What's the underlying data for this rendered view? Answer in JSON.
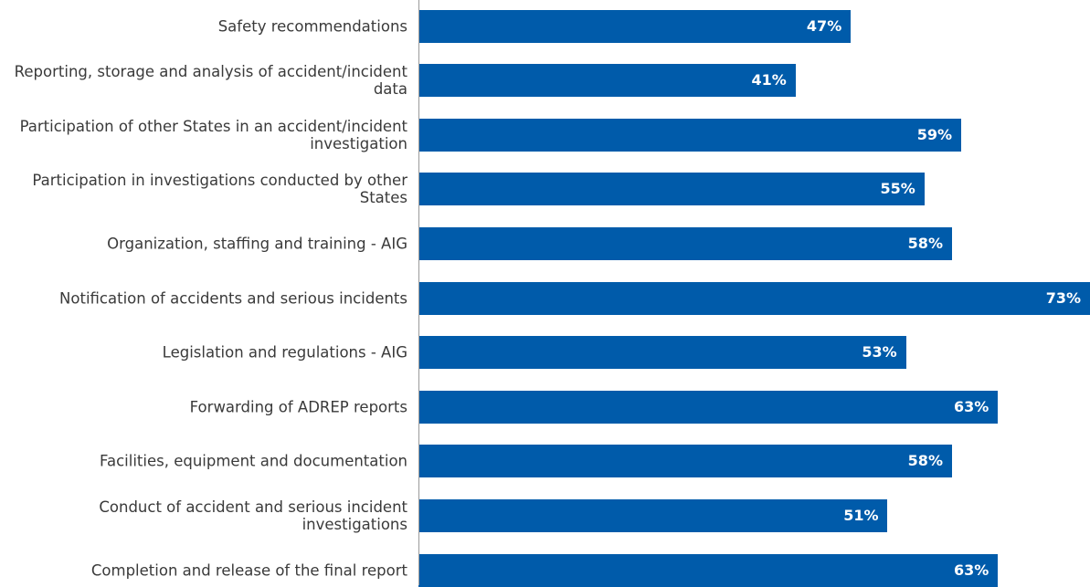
{
  "chart_data": {
    "type": "bar",
    "orientation": "horizontal",
    "color": "#005baa",
    "categories": [
      "Safety recommendations",
      "Reporting, storage and analysis of accident/incident data",
      "Participation of other States in an accident/incident investigation",
      "Participation in investigations conducted by other States",
      "Organization, staffing and training - AIG",
      "Notification of accidents and serious incidents",
      "Legislation and regulations - AIG",
      "Forwarding of ADREP reports",
      "Facilities, equipment and documentation",
      "Conduct of accident and serious incident investigations",
      "Completion and release of the final report"
    ],
    "values": [
      47,
      41,
      59,
      55,
      58,
      73,
      53,
      63,
      58,
      51,
      63
    ],
    "value_labels": [
      "47%",
      "41%",
      "59%",
      "55%",
      "58%",
      "73%",
      "53%",
      "63%",
      "58%",
      "51%",
      "63%"
    ],
    "xlim": [
      0,
      73
    ]
  }
}
